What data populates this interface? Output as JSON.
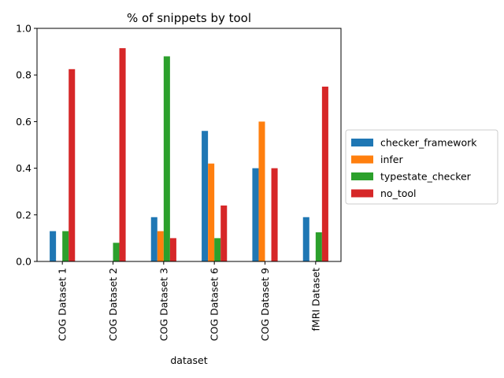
{
  "chart_data": {
    "type": "bar",
    "title": "% of snippets by tool",
    "xlabel": "dataset",
    "ylabel": "",
    "ylim": [
      0,
      1.0
    ],
    "yticks": [
      "0.0",
      "0.2",
      "0.4",
      "0.6",
      "0.8",
      "1.0"
    ],
    "ytick_values": [
      0.0,
      0.2,
      0.4,
      0.6,
      0.8,
      1.0
    ],
    "categories": [
      "COG Dataset 1",
      "COG Dataset 2",
      "COG Dataset 3",
      "COG Dataset 6",
      "COG Dataset 9",
      "fMRI Dataset"
    ],
    "legend_position": "center-right",
    "grid": false,
    "series": [
      {
        "name": "checker_framework",
        "color": "#1f77b4",
        "values": [
          0.13,
          0.0,
          0.19,
          0.56,
          0.4,
          0.19
        ]
      },
      {
        "name": "infer",
        "color": "#ff7f0e",
        "values": [
          0.0,
          0.0,
          0.13,
          0.42,
          0.6,
          0.0
        ]
      },
      {
        "name": "typestate_checker",
        "color": "#2ca02c",
        "values": [
          0.13,
          0.08,
          0.88,
          0.1,
          0.0,
          0.125
        ]
      },
      {
        "name": "no_tool",
        "color": "#d62728",
        "values": [
          0.825,
          0.915,
          0.1,
          0.24,
          0.4,
          0.75
        ]
      }
    ]
  }
}
